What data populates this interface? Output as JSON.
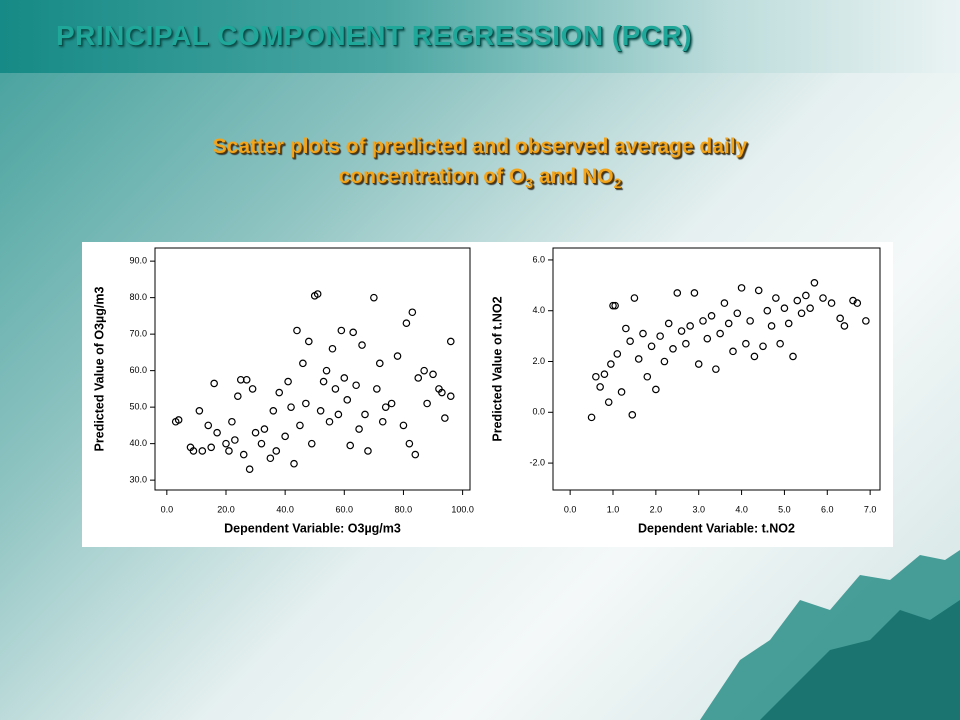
{
  "title": "PRINCIPAL COMPONENT REGRESSION (PCR)",
  "subtitle": {
    "line1": "Scatter plots of predicted and observed average daily",
    "line2": "concentration of O",
    "sub1": "3",
    "mid": " and NO",
    "sub2": "2"
  },
  "chart_data": [
    {
      "type": "scatter",
      "x_label": "Dependent Variable: O3µg/m3",
      "y_label": "Predicted Value of O3µg/m3",
      "color": "#000000",
      "xlim": [
        -4,
        102.5
      ],
      "ylim": [
        27.3,
        93.6
      ],
      "xticks": [
        {
          "value": 0,
          "label": "0.0"
        },
        {
          "value": 20,
          "label": "20.0"
        },
        {
          "value": 40,
          "label": "40.0"
        },
        {
          "value": 60,
          "label": "60.0"
        },
        {
          "value": 80,
          "label": "80.0"
        },
        {
          "value": 100,
          "label": "100.0"
        }
      ],
      "yticks": [
        {
          "value": 30,
          "label": "30.0"
        },
        {
          "value": 40,
          "label": "40.0"
        },
        {
          "value": 50,
          "label": "50.0"
        },
        {
          "value": 60,
          "label": "60.0"
        },
        {
          "value": 70,
          "label": "70.0"
        },
        {
          "value": 80,
          "label": "80.0"
        },
        {
          "value": 90,
          "label": "90.0"
        }
      ],
      "x": [
        3,
        4,
        8,
        9,
        11,
        12,
        14,
        15,
        16,
        17,
        20,
        21,
        22,
        23,
        24,
        25,
        26,
        27,
        28,
        29,
        30,
        32,
        33,
        35,
        36,
        37,
        38,
        40,
        41,
        42,
        43,
        44,
        45,
        46,
        47,
        48,
        49,
        50,
        51,
        52,
        53,
        54,
        55,
        56,
        57,
        58,
        59,
        60,
        61,
        62,
        63,
        64,
        65,
        66,
        67,
        68,
        70,
        71,
        72,
        73,
        74,
        76,
        78,
        80,
        81,
        82,
        83,
        84,
        85,
        87,
        88,
        90,
        92,
        94,
        96,
        96,
        93
      ],
      "y": [
        46,
        46.5,
        39,
        38,
        49,
        38,
        45,
        39,
        56.5,
        43,
        40,
        38,
        46,
        41,
        53,
        57.5,
        37,
        57.5,
        33,
        55,
        43,
        40,
        44,
        36,
        49,
        38,
        54,
        42,
        57,
        50,
        34.5,
        71,
        45,
        62,
        51,
        68,
        40,
        80.5,
        81,
        49,
        57,
        60,
        46,
        66,
        55,
        48,
        71,
        58,
        52,
        39.5,
        70.5,
        56,
        44,
        67,
        48,
        38,
        80,
        55,
        62,
        46,
        50,
        51,
        64,
        45,
        73,
        40,
        76,
        37,
        58,
        60,
        51,
        59,
        55,
        47,
        68,
        53,
        54
      ]
    },
    {
      "type": "scatter",
      "x_label": "Dependent Variable: t.NO2",
      "y_label": "Predicted Value of  t.NO2",
      "color": "#000000",
      "xlim": [
        -0.4,
        7.23
      ],
      "ylim": [
        -3.06,
        6.47
      ],
      "xticks": [
        {
          "value": 0,
          "label": "0.0"
        },
        {
          "value": 1,
          "label": "1.0"
        },
        {
          "value": 2,
          "label": "2.0"
        },
        {
          "value": 3,
          "label": "3.0"
        },
        {
          "value": 4,
          "label": "4.0"
        },
        {
          "value": 5,
          "label": "5.0"
        },
        {
          "value": 6,
          "label": "6.0"
        },
        {
          "value": 7,
          "label": "7.0"
        }
      ],
      "yticks": [
        {
          "value": -2,
          "label": "-2.0"
        },
        {
          "value": 0,
          "label": "0.0"
        },
        {
          "value": 2,
          "label": "2.0"
        },
        {
          "value": 4,
          "label": "4.0"
        },
        {
          "value": 6,
          "label": "6.0"
        }
      ],
      "x": [
        0.5,
        0.6,
        0.7,
        0.8,
        0.9,
        0.95,
        1.0,
        1.05,
        1.1,
        1.2,
        1.3,
        1.4,
        1.45,
        1.5,
        1.6,
        1.7,
        1.8,
        1.9,
        2.0,
        2.1,
        2.2,
        2.3,
        2.4,
        2.5,
        2.6,
        2.7,
        2.8,
        2.9,
        3.0,
        3.1,
        3.2,
        3.3,
        3.4,
        3.5,
        3.6,
        3.7,
        3.8,
        3.9,
        4.0,
        4.1,
        4.2,
        4.3,
        4.4,
        4.5,
        4.6,
        4.7,
        4.8,
        4.9,
        5.0,
        5.1,
        5.2,
        5.3,
        5.4,
        5.5,
        5.6,
        5.7,
        5.9,
        6.1,
        6.3,
        6.4,
        6.6,
        6.7,
        6.9
      ],
      "y": [
        -0.2,
        1.4,
        1.0,
        1.5,
        0.4,
        1.9,
        4.2,
        4.2,
        2.3,
        0.8,
        3.3,
        2.8,
        -0.1,
        4.5,
        2.1,
        3.1,
        1.4,
        2.6,
        0.9,
        3.0,
        2.0,
        3.5,
        2.5,
        4.7,
        3.2,
        2.7,
        3.4,
        4.7,
        1.9,
        3.6,
        2.9,
        3.8,
        1.7,
        3.1,
        4.3,
        3.5,
        2.4,
        3.9,
        4.9,
        2.7,
        3.6,
        2.2,
        4.8,
        2.6,
        4.0,
        3.4,
        4.5,
        2.7,
        4.1,
        3.5,
        2.2,
        4.4,
        3.9,
        4.6,
        4.1,
        5.1,
        4.5,
        4.3,
        3.7,
        3.4,
        4.4,
        4.3,
        3.6
      ]
    }
  ]
}
